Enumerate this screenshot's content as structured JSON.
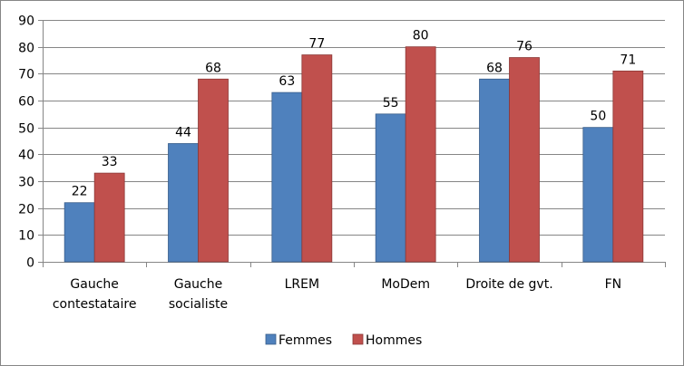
{
  "chart_data": {
    "type": "bar",
    "categories": [
      [
        "Gauche",
        "contestataire"
      ],
      [
        "Gauche",
        "socialiste"
      ],
      [
        "LREM"
      ],
      [
        "MoDem"
      ],
      [
        "Droite de gvt."
      ],
      [
        "FN"
      ]
    ],
    "series": [
      {
        "name": "Femmes",
        "values": [
          22,
          44,
          63,
          55,
          68,
          50
        ],
        "color": "#4F81BD",
        "edge": "#385D8A"
      },
      {
        "name": "Hommes",
        "values": [
          33,
          68,
          77,
          80,
          76,
          71
        ],
        "color": "#C0504D",
        "edge": "#8C3836"
      }
    ],
    "ylim": [
      0,
      90
    ],
    "yticks": [
      0,
      10,
      20,
      30,
      40,
      50,
      60,
      70,
      80,
      90
    ],
    "grid": true,
    "legend_position": "bottom",
    "data_labels": true
  }
}
